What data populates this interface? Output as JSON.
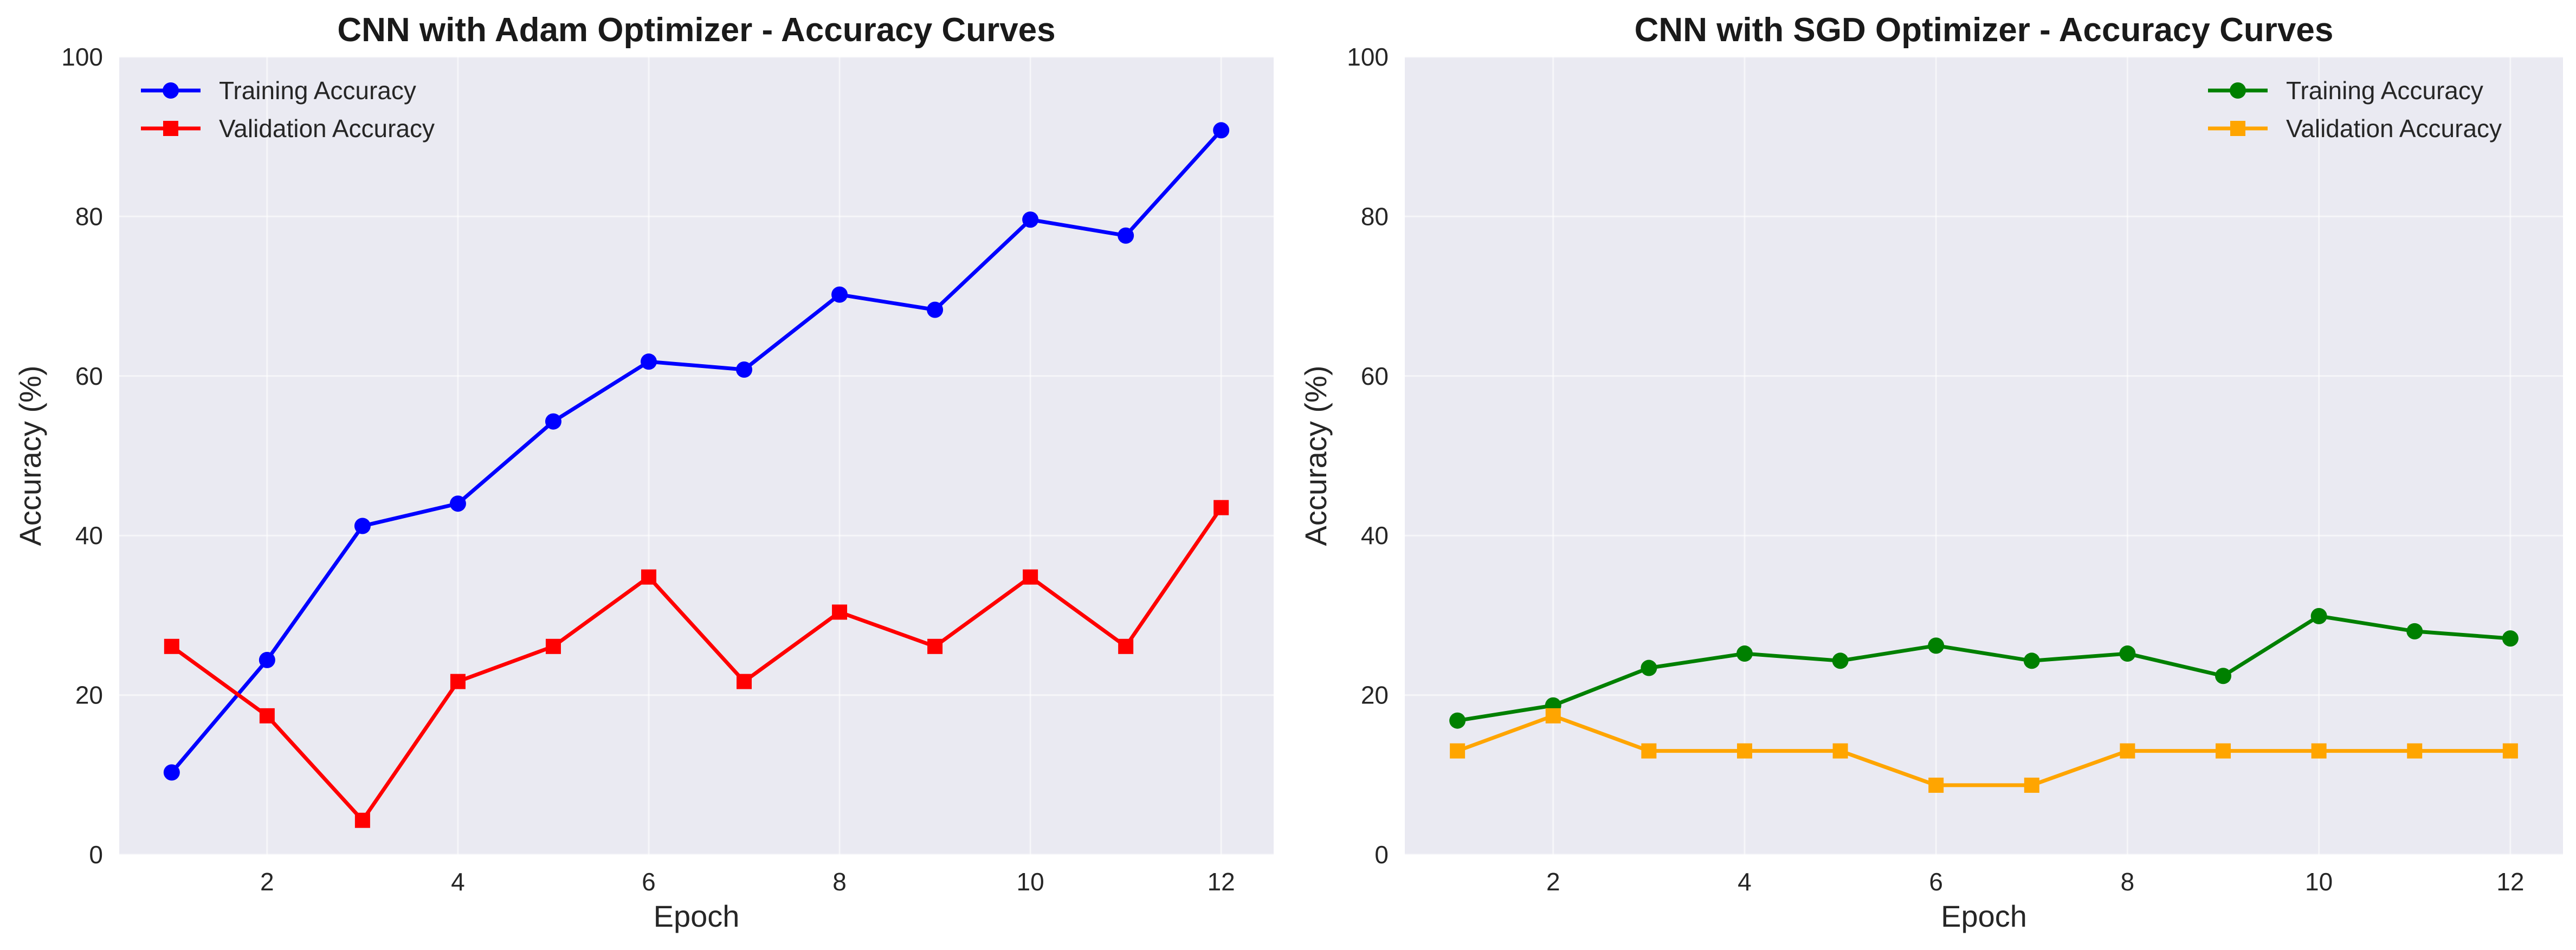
{
  "chart_data": [
    {
      "type": "line",
      "title": "CNN with Adam Optimizer - Accuracy Curves",
      "xlabel": "Epoch",
      "ylabel": "Accuracy (%)",
      "xlim": [
        0.45,
        12.55
      ],
      "ylim": [
        0,
        100
      ],
      "xticks": [
        2,
        4,
        6,
        8,
        10,
        12
      ],
      "yticks": [
        0,
        20,
        40,
        60,
        80,
        100
      ],
      "grid": true,
      "legend_position": "top-left",
      "x": [
        1,
        2,
        3,
        4,
        5,
        6,
        7,
        8,
        9,
        10,
        11,
        12
      ],
      "series": [
        {
          "name": "Training Accuracy",
          "color": "#0000ff",
          "marker": "circle",
          "values": [
            10.3,
            24.4,
            41.2,
            44.0,
            54.3,
            61.8,
            60.8,
            70.2,
            68.3,
            79.6,
            77.6,
            90.8
          ]
        },
        {
          "name": "Validation Accuracy",
          "color": "#ff0000",
          "marker": "square",
          "values": [
            26.1,
            17.4,
            4.3,
            21.7,
            26.1,
            34.8,
            21.7,
            30.4,
            26.1,
            34.8,
            26.1,
            43.5
          ]
        }
      ]
    },
    {
      "type": "line",
      "title": "CNN with SGD Optimizer - Accuracy Curves",
      "xlabel": "Epoch",
      "ylabel": "Accuracy (%)",
      "xlim": [
        0.45,
        12.55
      ],
      "ylim": [
        0,
        100
      ],
      "xticks": [
        2,
        4,
        6,
        8,
        10,
        12
      ],
      "yticks": [
        0,
        20,
        40,
        60,
        80,
        100
      ],
      "grid": true,
      "legend_position": "top-right",
      "x": [
        1,
        2,
        3,
        4,
        5,
        6,
        7,
        8,
        9,
        10,
        11,
        12
      ],
      "series": [
        {
          "name": "Training Accuracy",
          "color": "#008000",
          "marker": "circle",
          "values": [
            16.8,
            18.7,
            23.4,
            25.2,
            24.3,
            26.2,
            24.3,
            25.2,
            22.4,
            29.9,
            28.0,
            27.1
          ]
        },
        {
          "name": "Validation Accuracy",
          "color": "#ffa500",
          "marker": "square",
          "values": [
            13.0,
            17.4,
            13.0,
            13.0,
            13.0,
            8.7,
            8.7,
            13.0,
            13.0,
            13.0,
            13.0,
            13.0
          ]
        }
      ]
    }
  ]
}
